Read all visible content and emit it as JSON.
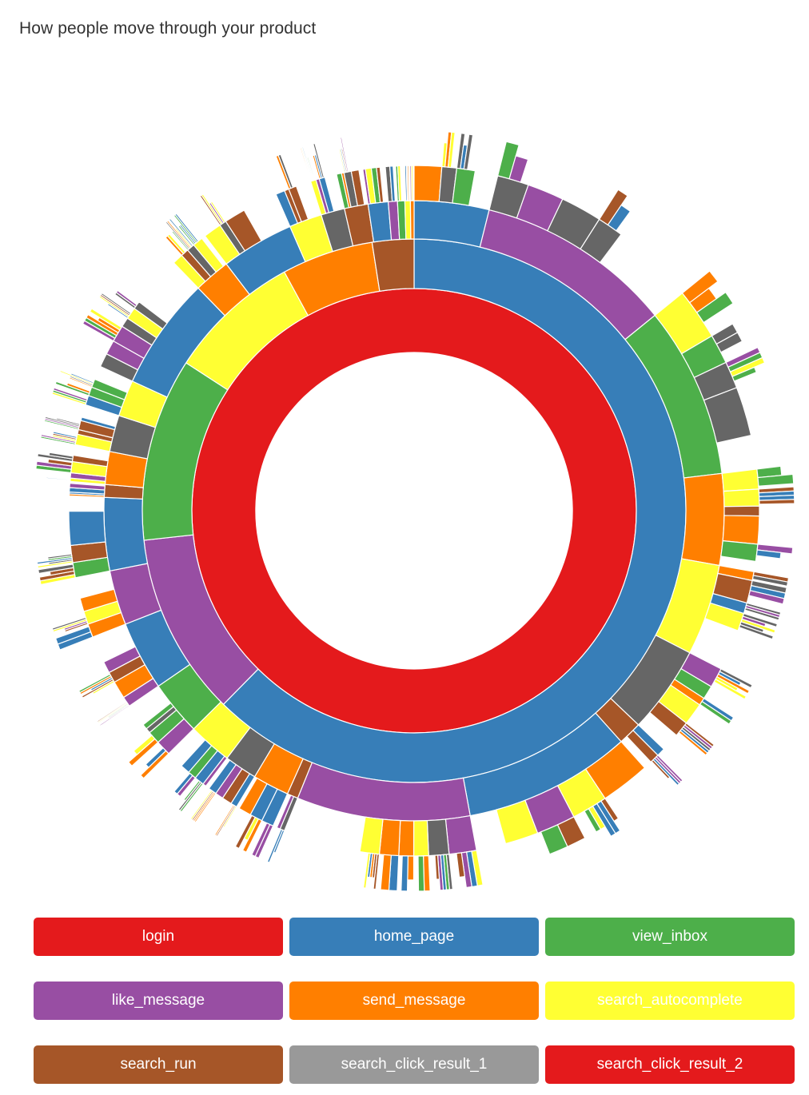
{
  "page": {
    "title": "How people move through your product"
  },
  "chart_data": {
    "type": "sunburst",
    "title": "How people move through your product",
    "root": "login",
    "legend": [
      {
        "label": "login",
        "color": "#e41a1c"
      },
      {
        "label": "home_page",
        "color": "#377eb8"
      },
      {
        "label": "view_inbox",
        "color": "#4daf4a"
      },
      {
        "label": "like_message",
        "color": "#984ea3"
      },
      {
        "label": "send_message",
        "color": "#ff7f00"
      },
      {
        "label": "search_autocomplete",
        "color": "#ffff33"
      },
      {
        "label": "search_run",
        "color": "#a65628"
      },
      {
        "label": "search_click_result_1",
        "color": "#999999"
      },
      {
        "label": "search_click_result_2",
        "color": "#e41a1c"
      }
    ],
    "rings": [
      {
        "level": 1,
        "segments": [
          {
            "event": "login",
            "share": 1.0
          }
        ]
      },
      {
        "level": 2,
        "segments": [
          {
            "event": "home_page",
            "share": 0.63
          },
          {
            "event": "like_message",
            "share": 0.11
          },
          {
            "event": "view_inbox",
            "share": 0.11
          },
          {
            "event": "search_autocomplete",
            "share": 0.08
          },
          {
            "event": "send_message",
            "share": 0.055
          },
          {
            "event": "search_run",
            "share": 0.025
          }
        ]
      },
      {
        "level": 3,
        "segments": [
          {
            "event": "home_page",
            "share": 0.041
          },
          {
            "event": "like_message",
            "share": 0.108
          },
          {
            "event": "view_inbox",
            "share": 0.094
          },
          {
            "event": "send_message",
            "share": 0.05
          },
          {
            "event": "search_autocomplete",
            "share": 0.05
          },
          {
            "event": "search_click_result_1",
            "share": 0.048
          },
          {
            "event": "search_run",
            "share": 0.013
          },
          {
            "event": "home_page",
            "share": 0.092
          },
          {
            "event": "like_message",
            "share": 0.095
          },
          {
            "event": "search_run",
            "share": 0.006
          },
          {
            "event": "send_message",
            "share": 0.02
          },
          {
            "event": "search_click_result_1",
            "share": 0.018
          },
          {
            "event": "search_autocomplete",
            "share": 0.024
          },
          {
            "event": "view_inbox",
            "share": 0.03
          },
          {
            "event": "home_page",
            "share": 0.038
          },
          {
            "event": "like_message",
            "share": 0.03
          },
          {
            "event": "home_page",
            "share": 0.04
          },
          {
            "event": "search_run",
            "share": 0.007
          },
          {
            "event": "send_message",
            "share": 0.018
          },
          {
            "event": "search_click_result_1",
            "share": 0.02
          },
          {
            "event": "search_autocomplete",
            "share": 0.02
          },
          {
            "event": "home_page",
            "share": 0.062
          },
          {
            "event": "send_message",
            "share": 0.02
          },
          {
            "event": "home_page",
            "share": 0.04
          },
          {
            "event": "search_autocomplete",
            "share": 0.018
          },
          {
            "event": "search_click_result_1",
            "share": 0.013
          },
          {
            "event": "search_run",
            "share": 0.013
          },
          {
            "event": "home_page",
            "share": 0.011
          },
          {
            "event": "like_message",
            "share": 0.005
          },
          {
            "event": "view_inbox",
            "share": 0.004
          },
          {
            "event": "search_autocomplete",
            "share": 0.003
          },
          {
            "event": "send_message",
            "share": 0.002
          }
        ]
      }
    ]
  }
}
